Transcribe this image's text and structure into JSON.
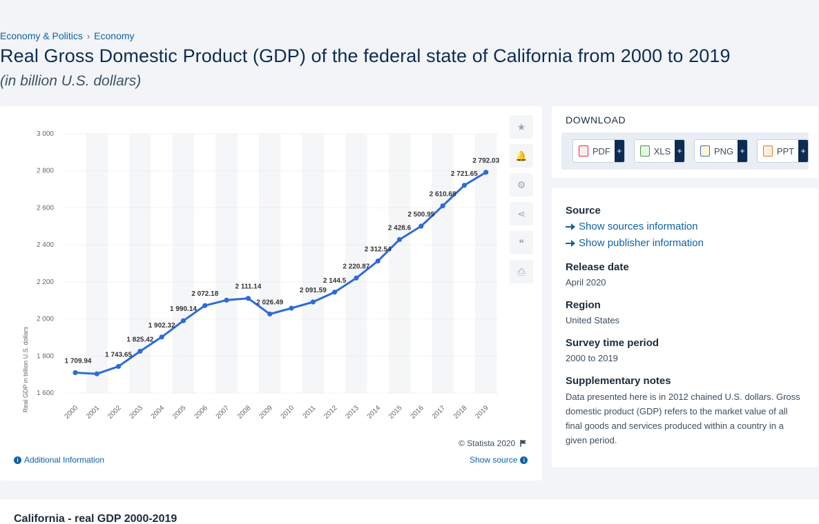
{
  "breadcrumb": {
    "item1": "Economy & Politics",
    "separator": "›",
    "item2": "Economy"
  },
  "title": "Real Gross Domestic Product (GDP) of the federal state of California from 2000 to 2019",
  "subtitle": "(in billion U.S. dollars)",
  "chart_data": {
    "type": "line",
    "title": "",
    "xlabel": "",
    "ylabel": "Real GDP in billion U.S. dollars",
    "categories": [
      "2000",
      "2001",
      "2002",
      "2003",
      "2004",
      "2005",
      "2006",
      "2007",
      "2008",
      "2009",
      "2010",
      "2011",
      "2012",
      "2013",
      "2014",
      "2015",
      "2016",
      "2017",
      "2018",
      "2019"
    ],
    "series": [
      {
        "values": [
          1709.94,
          1703.5,
          1743.65,
          1825.42,
          1902.32,
          1990.14,
          2072.18,
          2101.5,
          2111.14,
          2026.49,
          2058.0,
          2091.59,
          2144.5,
          2220.87,
          2312.54,
          2428.6,
          2500.95,
          2610.68,
          2721.65,
          2792.03
        ]
      }
    ],
    "data_labels": [
      "1 709.94",
      "",
      "1 743.65",
      "1 825.42",
      "1 902.32",
      "1 990.14",
      "2 072.18",
      "",
      "2 111.14",
      "2 026.49",
      "",
      "2 091.59",
      "2 144.5",
      "2 220.87",
      "2 312.54",
      "2 428.6",
      "2 500.95",
      "2 610.68",
      "2 721.65",
      "2 792.03"
    ],
    "yticks": [
      1600,
      1800,
      2000,
      2200,
      2400,
      2600,
      2800,
      3000
    ],
    "ytick_labels": [
      "1 600",
      "1 800",
      "2 000",
      "2 200",
      "2 400",
      "2 600",
      "2 800",
      "3 000"
    ],
    "ylim": [
      1600,
      3000
    ],
    "grid": true,
    "legend": "none",
    "line_color": "#2e6bd4"
  },
  "chart_footer": {
    "credit": "© Statista 2020",
    "additional_info": "Additional Information",
    "show_source": "Show source"
  },
  "download": {
    "title": "DOWNLOAD",
    "buttons": [
      {
        "label": "PDF",
        "plus": "+"
      },
      {
        "label": "XLS",
        "plus": "+"
      },
      {
        "label": "PNG",
        "plus": "+"
      },
      {
        "label": "PPT",
        "plus": "+"
      }
    ]
  },
  "info": {
    "source_label": "Source",
    "show_sources": "Show sources information",
    "show_publisher": "Show publisher information",
    "release_label": "Release date",
    "release_value": "April 2020",
    "region_label": "Region",
    "region_value": "United States",
    "survey_label": "Survey time period",
    "survey_value": "2000 to 2019",
    "notes_label": "Supplementary notes",
    "notes_value": "Data presented here is in 2012 chained U.S. dollars. Gross domestic product (GDP) refers to the market value of all final goods and services produced within a country in a given period."
  },
  "bottom": {
    "title": "California - real GDP 2000-2019"
  }
}
